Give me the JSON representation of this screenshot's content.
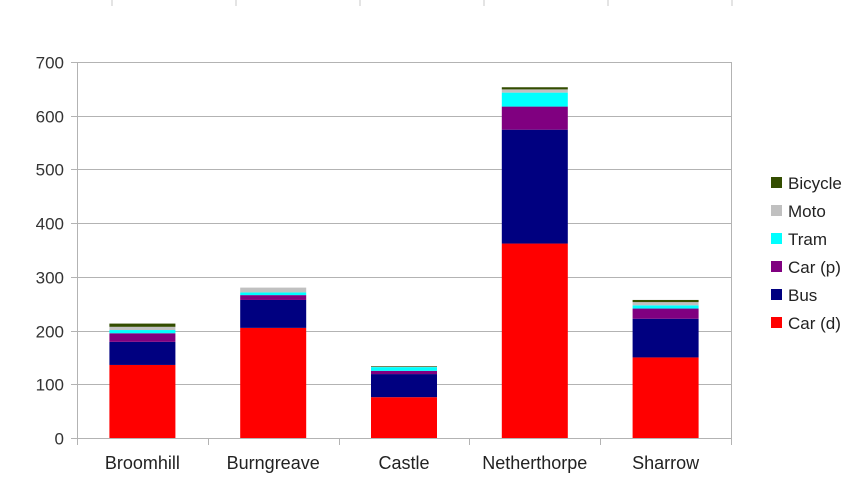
{
  "chart_data": {
    "type": "bar",
    "stacked": true,
    "categories": [
      "Broomhill",
      "Burngreave",
      "Castle",
      "Netherthorpe",
      "Sharrow"
    ],
    "series": [
      {
        "name": "Car (d)",
        "color": "#ff0000",
        "values": [
          136,
          205,
          76,
          362,
          150
        ]
      },
      {
        "name": "Bus",
        "color": "#000080",
        "values": [
          43,
          52,
          43,
          212,
          72
        ]
      },
      {
        "name": "Car (p)",
        "color": "#800080",
        "values": [
          16,
          9,
          6,
          43,
          19
        ]
      },
      {
        "name": "Tram",
        "color": "#00ffff",
        "values": [
          6,
          5,
          7,
          26,
          6
        ]
      },
      {
        "name": "Moto",
        "color": "#c0c0c0",
        "values": [
          6,
          9,
          1,
          6,
          6
        ]
      },
      {
        "name": "Bicycle",
        "color": "#334d00",
        "values": [
          6,
          0,
          1,
          4,
          4
        ]
      }
    ],
    "yticks": [
      0,
      100,
      200,
      300,
      400,
      500,
      600,
      700
    ],
    "ylim": [
      0,
      700
    ],
    "grid": true,
    "legend_position": "right"
  }
}
